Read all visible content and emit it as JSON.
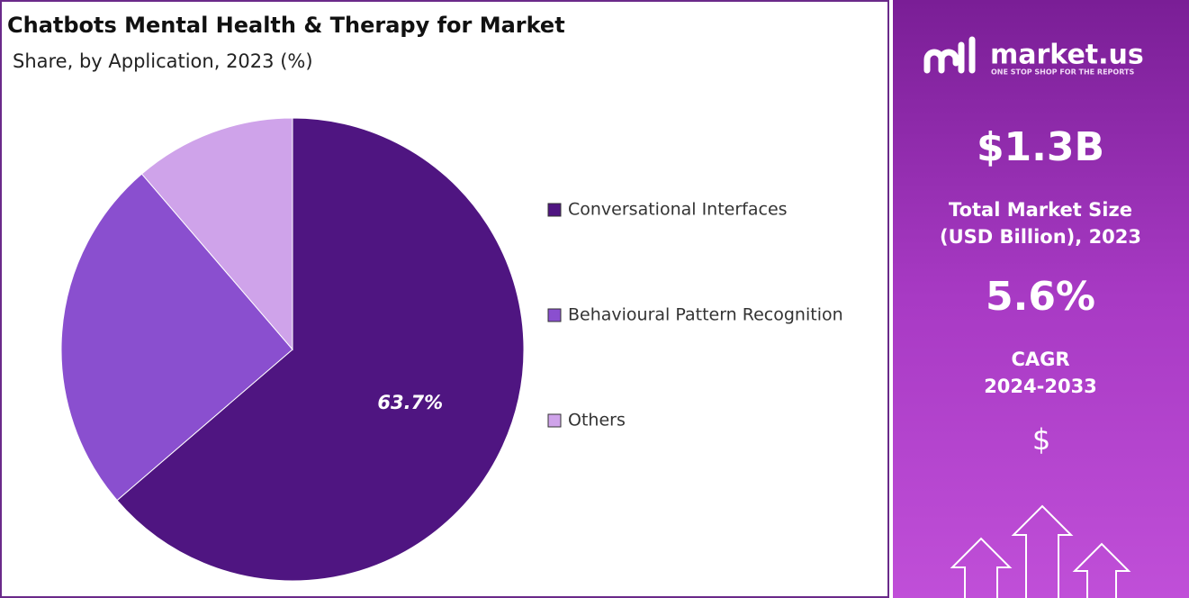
{
  "chart_data": {
    "type": "pie",
    "title": "Chatbots Mental Health & Therapy for  Market",
    "subtitle": "Share, by Application, 2023 (%)",
    "categories": [
      "Conversational Interfaces",
      "Behavioural Pattern Recognition",
      "Others"
    ],
    "values": [
      63.7,
      25.0,
      11.3
    ],
    "value_labels": [
      "63.7%",
      null,
      null
    ],
    "colors": [
      "#4f1581",
      "#8a4fcf",
      "#cfa3ea"
    ],
    "legend": "right"
  },
  "panel": {
    "brand": "market.us",
    "tagline": "ONE STOP SHOP FOR THE REPORTS",
    "market_size": "$1.3B",
    "market_size_label": [
      "Total Market Size",
      "(USD Billion), 2023"
    ],
    "cagr": "5.6%",
    "cagr_label": [
      "CAGR",
      "2024-2033"
    ],
    "icon": "$"
  }
}
